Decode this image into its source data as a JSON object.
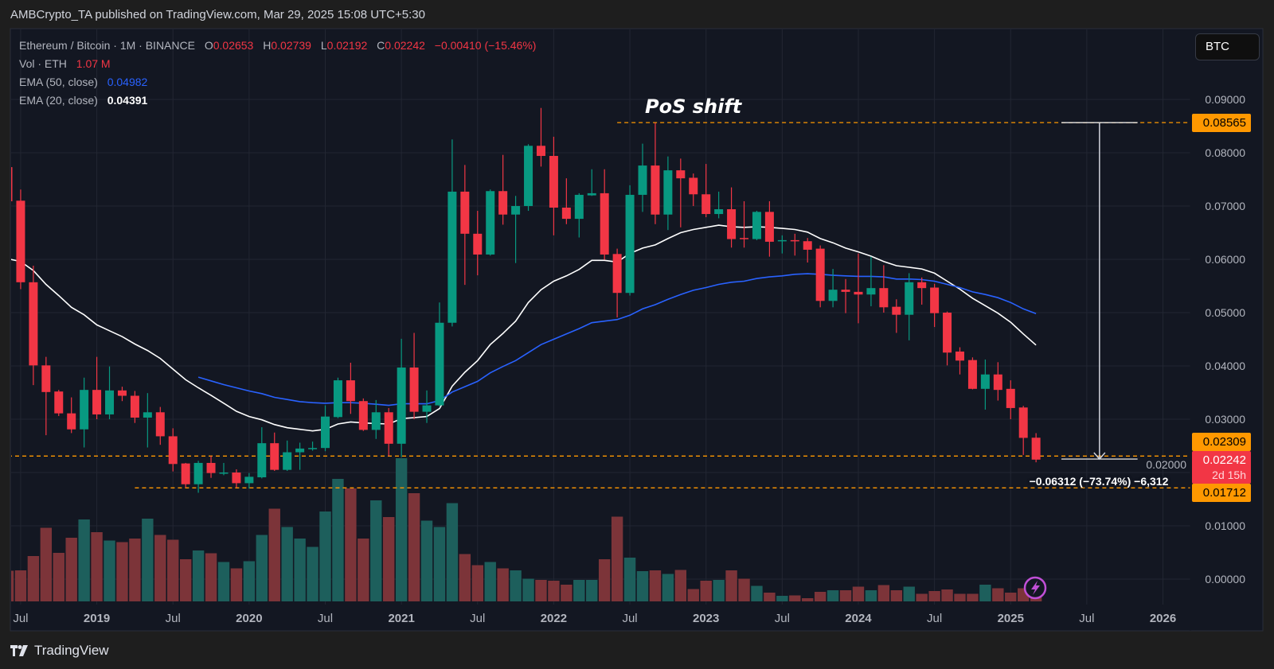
{
  "header": {
    "published": "AMBCrypto_TA published on TradingView.com, Mar 29, 2025 15:08 UTC+5:30"
  },
  "legend": {
    "symbol": "Ethereum / Bitcoin · 1M · BINANCE",
    "o_label": "O",
    "o": "0.02653",
    "h_label": "H",
    "h": "0.02739",
    "l_label": "L",
    "l": "0.02192",
    "c_label": "C",
    "c": "0.02242",
    "change": "−0.00410 (−15.46%)",
    "vol_label": "Vol · ETH",
    "vol": "1.07 M",
    "ema50_label": "EMA (50, close)",
    "ema50": "0.04982",
    "ema20_label": "EMA (20, close)",
    "ema20": "0.04391"
  },
  "currency_button": "BTC",
  "footer": {
    "logo_text": "TradingView"
  },
  "colors": {
    "background": "#1e1e1e",
    "pane": "#131722",
    "grid": "#222632",
    "up": "#089981",
    "down": "#f23645",
    "up_volume": "#1d5f5c",
    "down_volume": "#7c3439",
    "ema50": "#2962ff",
    "ema20": "#ffffff",
    "price_line": "#ff9800",
    "event_icon": "#c04fd6"
  },
  "chart_data": {
    "type": "candlestick",
    "title": "Ethereum / Bitcoin · 1M · BINANCE",
    "interval": "1M",
    "first_bar": "2018-06",
    "ylim": [
      0,
      0.096
    ],
    "yaxis_ticks": [
      {
        "value": 0.09,
        "label": "0.09000"
      },
      {
        "value": 0.08,
        "label": "0.08000"
      },
      {
        "value": 0.07,
        "label": "0.07000"
      },
      {
        "value": 0.06,
        "label": "0.06000"
      },
      {
        "value": 0.05,
        "label": "0.05000"
      },
      {
        "value": 0.04,
        "label": "0.04000"
      },
      {
        "value": 0.03,
        "label": "0.03000"
      },
      {
        "value": 0.02,
        "label": "0.02000"
      },
      {
        "value": 0.01,
        "label": "0.01000"
      },
      {
        "value": 0.0,
        "label": "0.00000"
      }
    ],
    "xaxis_ticks": [
      {
        "index": 1,
        "label": "Jul"
      },
      {
        "index": 7,
        "label": "2019"
      },
      {
        "index": 13,
        "label": "Jul"
      },
      {
        "index": 19,
        "label": "2020"
      },
      {
        "index": 25,
        "label": "Jul"
      },
      {
        "index": 31,
        "label": "2021"
      },
      {
        "index": 37,
        "label": "Jul"
      },
      {
        "index": 43,
        "label": "2022"
      },
      {
        "index": 49,
        "label": "Jul"
      },
      {
        "index": 55,
        "label": "2023"
      },
      {
        "index": 61,
        "label": "Jul"
      },
      {
        "index": 67,
        "label": "2024"
      },
      {
        "index": 73,
        "label": "Jul"
      },
      {
        "index": 79,
        "label": "2025"
      },
      {
        "index": 85,
        "label": "Jul"
      },
      {
        "index": 91,
        "label": "2026"
      }
    ],
    "ohlc_fields": [
      "open",
      "high",
      "low",
      "close"
    ],
    "candles": [
      [
        0.0773,
        0.0775,
        0.0705,
        0.0709
      ],
      [
        0.071,
        0.0731,
        0.0544,
        0.0557
      ],
      [
        0.0557,
        0.0588,
        0.0364,
        0.0401
      ],
      [
        0.0401,
        0.0417,
        0.027,
        0.0351
      ],
      [
        0.0352,
        0.0355,
        0.0306,
        0.0311
      ],
      [
        0.0311,
        0.0341,
        0.0274,
        0.0281
      ],
      [
        0.0281,
        0.0378,
        0.0247,
        0.0355
      ],
      [
        0.0355,
        0.0417,
        0.03,
        0.0309
      ],
      [
        0.0309,
        0.0399,
        0.03,
        0.0354
      ],
      [
        0.0354,
        0.0361,
        0.0334,
        0.0344
      ],
      [
        0.0344,
        0.0353,
        0.0293,
        0.0303
      ],
      [
        0.0303,
        0.0349,
        0.0247,
        0.0313
      ],
      [
        0.0313,
        0.0323,
        0.0252,
        0.0268
      ],
      [
        0.0268,
        0.0283,
        0.0202,
        0.0216
      ],
      [
        0.0217,
        0.0218,
        0.0172,
        0.0178
      ],
      [
        0.0178,
        0.0222,
        0.0162,
        0.0218
      ],
      [
        0.0218,
        0.0231,
        0.019,
        0.0199
      ],
      [
        0.0199,
        0.0218,
        0.0195,
        0.02
      ],
      [
        0.02,
        0.0206,
        0.0172,
        0.018
      ],
      [
        0.018,
        0.0199,
        0.017,
        0.0192
      ],
      [
        0.0191,
        0.0285,
        0.0189,
        0.0255
      ],
      [
        0.0255,
        0.0275,
        0.0203,
        0.0205
      ],
      [
        0.0205,
        0.026,
        0.0203,
        0.0238
      ],
      [
        0.0238,
        0.0256,
        0.0205,
        0.0245
      ],
      [
        0.0245,
        0.0258,
        0.0241,
        0.0246
      ],
      [
        0.0246,
        0.0326,
        0.024,
        0.0305
      ],
      [
        0.0304,
        0.0378,
        0.0302,
        0.0373
      ],
      [
        0.0373,
        0.0406,
        0.031,
        0.0334
      ],
      [
        0.0334,
        0.0339,
        0.0278,
        0.028
      ],
      [
        0.028,
        0.0336,
        0.0263,
        0.0313
      ],
      [
        0.0313,
        0.0321,
        0.0231,
        0.0254
      ],
      [
        0.0254,
        0.0451,
        0.0229,
        0.0397
      ],
      [
        0.0397,
        0.0462,
        0.03,
        0.0314
      ],
      [
        0.0314,
        0.0354,
        0.0293,
        0.0326
      ],
      [
        0.0326,
        0.0519,
        0.0324,
        0.0481
      ],
      [
        0.0481,
        0.0825,
        0.0474,
        0.0727
      ],
      [
        0.0727,
        0.0777,
        0.0552,
        0.0648
      ],
      [
        0.0648,
        0.0691,
        0.057,
        0.0609
      ],
      [
        0.0609,
        0.0731,
        0.0607,
        0.0728
      ],
      [
        0.0728,
        0.0796,
        0.0665,
        0.0684
      ],
      [
        0.0684,
        0.0719,
        0.0593,
        0.07
      ],
      [
        0.07,
        0.0816,
        0.0691,
        0.0813
      ],
      [
        0.0813,
        0.0884,
        0.0774,
        0.0794
      ],
      [
        0.0794,
        0.083,
        0.0645,
        0.0697
      ],
      [
        0.0697,
        0.0752,
        0.0666,
        0.0676
      ],
      [
        0.0676,
        0.0724,
        0.0641,
        0.0721
      ],
      [
        0.072,
        0.0769,
        0.0719,
        0.0724
      ],
      [
        0.0724,
        0.0769,
        0.0599,
        0.0609
      ],
      [
        0.061,
        0.062,
        0.0491,
        0.0537
      ],
      [
        0.0537,
        0.0739,
        0.0532,
        0.0721
      ],
      [
        0.0721,
        0.0817,
        0.0689,
        0.0776
      ],
      [
        0.0776,
        0.0856,
        0.0666,
        0.0684
      ],
      [
        0.0684,
        0.0793,
        0.0655,
        0.0767
      ],
      [
        0.0767,
        0.0789,
        0.066,
        0.0752
      ],
      [
        0.0753,
        0.0761,
        0.07,
        0.0722
      ],
      [
        0.0722,
        0.0779,
        0.0679,
        0.0685
      ],
      [
        0.0685,
        0.0727,
        0.0677,
        0.0694
      ],
      [
        0.0694,
        0.0735,
        0.0622,
        0.0638
      ],
      [
        0.064,
        0.0709,
        0.0622,
        0.0638
      ],
      [
        0.0638,
        0.0691,
        0.0636,
        0.0689
      ],
      [
        0.0689,
        0.0709,
        0.0605,
        0.0633
      ],
      [
        0.0634,
        0.0645,
        0.0611,
        0.0636
      ],
      [
        0.0636,
        0.0648,
        0.0607,
        0.0634
      ],
      [
        0.0634,
        0.064,
        0.0594,
        0.0618
      ],
      [
        0.062,
        0.0626,
        0.051,
        0.0522
      ],
      [
        0.0522,
        0.0582,
        0.051,
        0.0543
      ],
      [
        0.0543,
        0.0563,
        0.0499,
        0.0539
      ],
      [
        0.0539,
        0.0611,
        0.048,
        0.0534
      ],
      [
        0.0534,
        0.0605,
        0.0512,
        0.0546
      ],
      [
        0.0546,
        0.0589,
        0.05,
        0.051
      ],
      [
        0.0511,
        0.0525,
        0.0462,
        0.0496
      ],
      [
        0.0496,
        0.0574,
        0.0448,
        0.0557
      ],
      [
        0.0557,
        0.0566,
        0.0515,
        0.0546
      ],
      [
        0.0547,
        0.0554,
        0.0473,
        0.0499
      ],
      [
        0.05,
        0.0502,
        0.0401,
        0.0425
      ],
      [
        0.0427,
        0.0435,
        0.0384,
        0.041
      ],
      [
        0.0411,
        0.0416,
        0.0356,
        0.0357
      ],
      [
        0.0357,
        0.0412,
        0.0318,
        0.0384
      ],
      [
        0.0384,
        0.0407,
        0.0335,
        0.0355
      ],
      [
        0.0357,
        0.0373,
        0.03,
        0.0321
      ],
      [
        0.0322,
        0.0325,
        0.0233,
        0.0265
      ],
      [
        0.02653,
        0.02739,
        0.02192,
        0.02242
      ]
    ],
    "volume_unit": "M ETH",
    "volume": [
      7.7,
      7.8,
      11.4,
      18.5,
      12.2,
      16.0,
      20.6,
      17.4,
      15.3,
      14.9,
      15.8,
      20.8,
      16.7,
      15.5,
      10.6,
      12.8,
      12.1,
      9.9,
      8.3,
      10.1,
      16.7,
      23.3,
      18.7,
      15.8,
      13.7,
      22.6,
      30.8,
      28.4,
      15.8,
      25.4,
      21.2,
      36.0,
      27.2,
      20.3,
      18.7,
      24.7,
      11.9,
      9.1,
      9.9,
      8.3,
      7.8,
      5.7,
      5.4,
      5.2,
      4.2,
      5.4,
      5.4,
      10.6,
      21.3,
      11.0,
      7.6,
      7.8,
      6.9,
      7.9,
      3.1,
      5.2,
      5.4,
      7.8,
      5.7,
      3.9,
      2.2,
      1.4,
      1.5,
      0.8,
      2.4,
      2.8,
      2.8,
      3.7,
      2.8,
      4.1,
      2.8,
      3.7,
      1.9,
      2.6,
      3.0,
      1.9,
      1.9,
      4.2,
      3.3,
      2.2,
      3.3,
      1.07
    ],
    "series": [
      {
        "name": "EMA (20, close)",
        "values": [
          0.0601,
          0.0596,
          0.0579,
          0.0553,
          0.0532,
          0.051,
          0.0496,
          0.0477,
          0.0466,
          0.0455,
          0.0441,
          0.0429,
          0.0414,
          0.0394,
          0.0374,
          0.0359,
          0.0345,
          0.033,
          0.0315,
          0.0305,
          0.0299,
          0.029,
          0.0284,
          0.0281,
          0.0278,
          0.0281,
          0.0291,
          0.0295,
          0.0293,
          0.0292,
          0.0291,
          0.0301,
          0.0303,
          0.0305,
          0.032,
          0.0362,
          0.0388,
          0.041,
          0.044,
          0.0461,
          0.0484,
          0.0519,
          0.0543,
          0.0559,
          0.0569,
          0.0581,
          0.0598,
          0.0598,
          0.0595,
          0.0611,
          0.0621,
          0.0627,
          0.0639,
          0.065,
          0.0656,
          0.066,
          0.0664,
          0.0661,
          0.066,
          0.0661,
          0.066,
          0.0658,
          0.0656,
          0.0651,
          0.0639,
          0.0631,
          0.0621,
          0.0614,
          0.0606,
          0.0596,
          0.0588,
          0.0585,
          0.0582,
          0.0574,
          0.0559,
          0.0544,
          0.0527,
          0.0513,
          0.0499,
          0.0482,
          0.046,
          0.04391
        ]
      },
      {
        "name": "EMA (50, close)",
        "values": [
          null,
          null,
          null,
          null,
          null,
          null,
          null,
          null,
          null,
          null,
          null,
          null,
          null,
          null,
          null,
          0.0379,
          0.0372,
          0.0365,
          0.0359,
          0.0353,
          0.0348,
          0.0341,
          0.0337,
          0.0333,
          0.0331,
          0.033,
          0.0331,
          0.0331,
          0.033,
          0.0328,
          0.0326,
          0.0329,
          0.0329,
          0.0329,
          0.0335,
          0.0351,
          0.0361,
          0.0371,
          0.0387,
          0.0399,
          0.041,
          0.0425,
          0.044,
          0.045,
          0.046,
          0.047,
          0.0481,
          0.0484,
          0.0487,
          0.0495,
          0.0507,
          0.0515,
          0.0525,
          0.0534,
          0.0542,
          0.0547,
          0.0553,
          0.0557,
          0.0559,
          0.0564,
          0.0567,
          0.0569,
          0.0572,
          0.0573,
          0.0572,
          0.057,
          0.0569,
          0.0568,
          0.0568,
          0.0567,
          0.0563,
          0.0563,
          0.0562,
          0.0559,
          0.0553,
          0.0547,
          0.0539,
          0.0534,
          0.0528,
          0.0519,
          0.0507,
          0.04982
        ]
      }
    ],
    "price_lines": [
      {
        "value": 0.08565,
        "label": "0.08565",
        "start_index": 48
      },
      {
        "value": 0.02309,
        "label": "0.02309",
        "start_index": 0
      },
      {
        "value": 0.01712,
        "label": "0.01712",
        "start_index": 10
      }
    ],
    "last_price": {
      "value": 0.02242,
      "label": "0.02242",
      "countdown": "2d 15h"
    },
    "annotations": [
      {
        "text": "PoS shift",
        "index": 51
      }
    ],
    "measure": {
      "from": 0.08565,
      "to": 0.02253,
      "start_index": 83,
      "end_index": 89,
      "label": "−0.06312 (−73.74%) −6,312"
    }
  }
}
